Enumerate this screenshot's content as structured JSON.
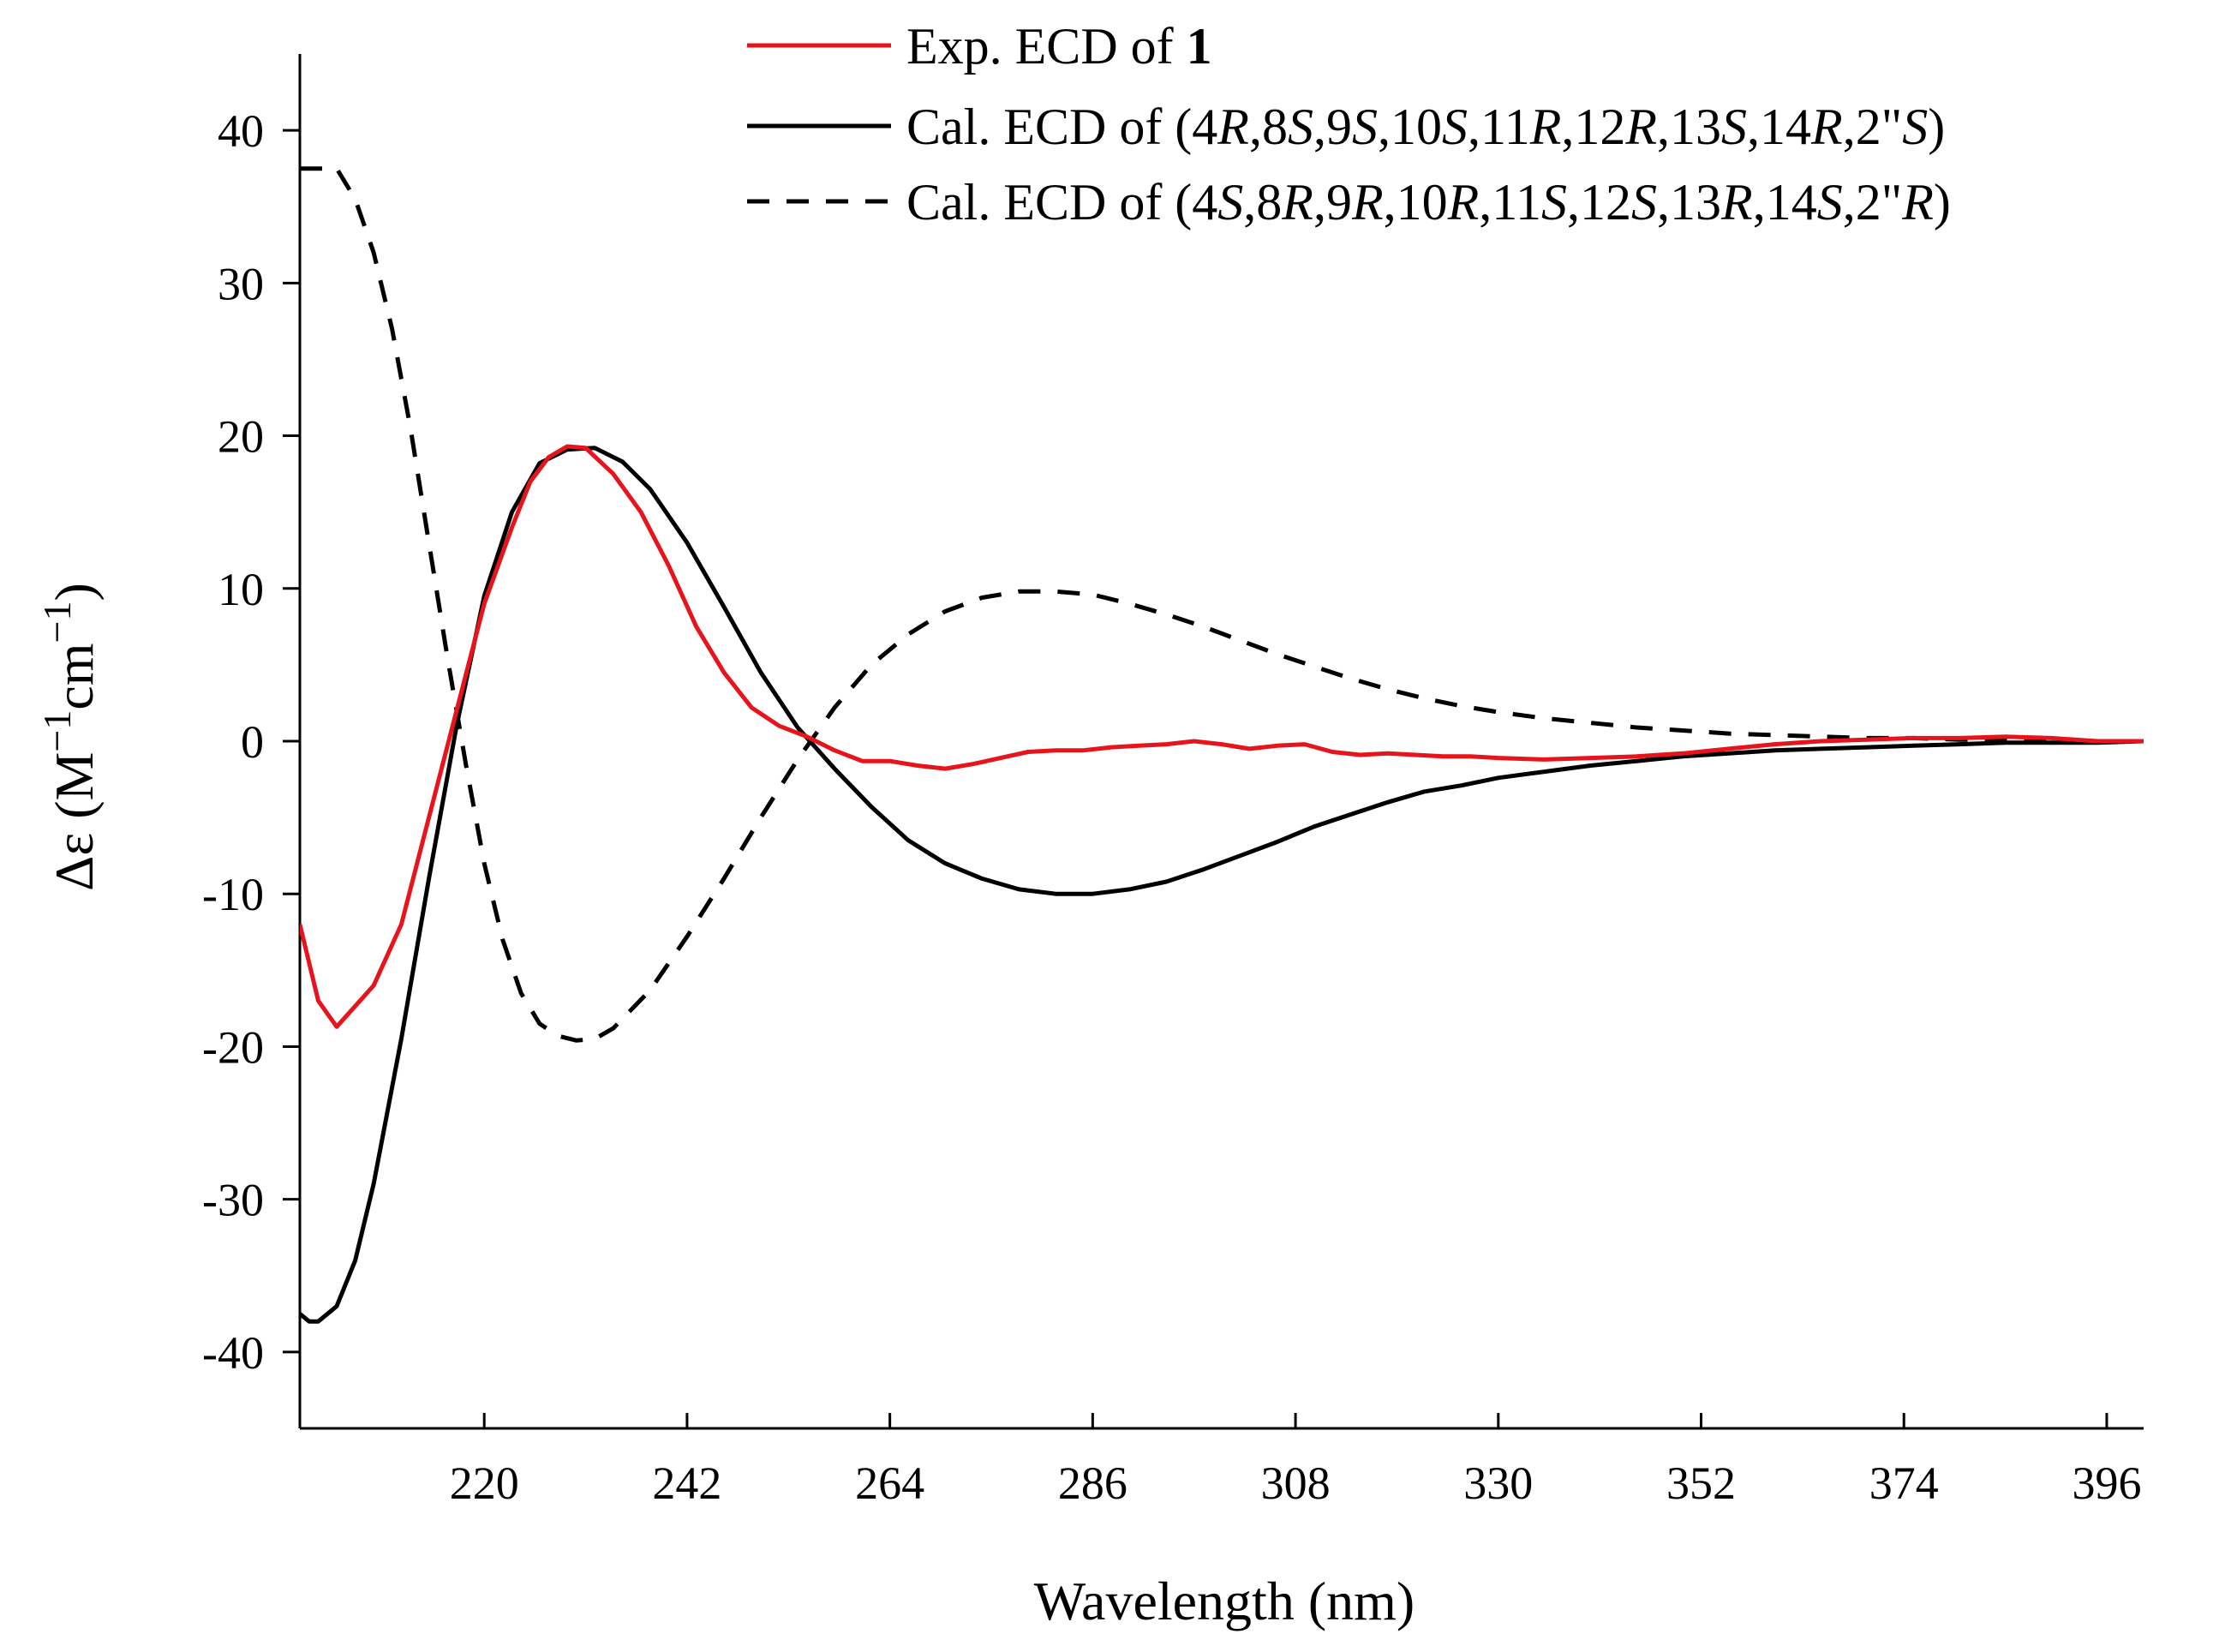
{
  "chart_data": {
    "type": "line",
    "title": "",
    "xlabel": "Wavelength (nm)",
    "ylabel": {
      "prefix": "Δε (M",
      "sup1": "−1",
      "mid": "cm",
      "sup2": "−1",
      "suffix": ")"
    },
    "xlim": [
      200,
      400
    ],
    "ylim": [
      -45,
      45
    ],
    "xticks": [
      220,
      242,
      264,
      286,
      308,
      330,
      352,
      374,
      396
    ],
    "yticks": [
      40,
      30,
      20,
      10,
      0,
      -10,
      -20,
      -30,
      -40
    ],
    "grid": false,
    "legend": {
      "position": "top-right"
    },
    "series": [
      {
        "name": "Exp. ECD of 1",
        "legend": [
          {
            "text": "Exp. ECD of ",
            "style": "normal"
          },
          {
            "text": "1",
            "style": "bold"
          }
        ],
        "color": "#e8141c",
        "dash": "solid",
        "x": [
          200,
          202,
          204,
          208,
          211,
          214,
          217,
          220,
          223,
          225,
          227,
          229,
          231,
          234,
          237,
          240,
          243,
          246,
          249,
          252,
          255,
          258,
          261,
          264,
          267,
          270,
          273,
          276,
          279,
          282,
          285,
          288,
          291,
          294,
          297,
          300,
          303,
          306,
          309,
          312,
          315,
          318,
          321,
          324,
          327,
          330,
          335,
          340,
          345,
          350,
          355,
          360,
          365,
          370,
          375,
          380,
          385,
          390,
          395,
          400
        ],
        "y": [
          -12,
          -17,
          -18.7,
          -16,
          -12,
          -5,
          2,
          9,
          14,
          17,
          18.6,
          19.3,
          19.2,
          17.5,
          15,
          11.5,
          7.5,
          4.5,
          2.2,
          1.0,
          0.3,
          -0.6,
          -1.3,
          -1.3,
          -1.6,
          -1.8,
          -1.5,
          -1.1,
          -0.7,
          -0.6,
          -0.6,
          -0.4,
          -0.3,
          -0.2,
          0.0,
          -0.2,
          -0.5,
          -0.3,
          -0.2,
          -0.7,
          -0.9,
          -0.8,
          -0.9,
          -1.0,
          -1.0,
          -1.1,
          -1.2,
          -1.1,
          -1.0,
          -0.8,
          -0.5,
          -0.2,
          0.0,
          0.1,
          0.2,
          0.2,
          0.3,
          0.2,
          0.0,
          0.0
        ]
      },
      {
        "name": "Cal. ECD of (4R,8S,9S,10S,11R,12R,13S,14R,2\"S)",
        "legend": [
          {
            "text": "Cal. ECD of (4",
            "style": "normal"
          },
          {
            "text": "R",
            "style": "italic"
          },
          {
            "text": ",8",
            "style": "normal"
          },
          {
            "text": "S",
            "style": "italic"
          },
          {
            "text": ",9",
            "style": "normal"
          },
          {
            "text": "S",
            "style": "italic"
          },
          {
            "text": ",10",
            "style": "normal"
          },
          {
            "text": "S",
            "style": "italic"
          },
          {
            "text": ",11",
            "style": "normal"
          },
          {
            "text": "R",
            "style": "italic"
          },
          {
            "text": ",12",
            "style": "normal"
          },
          {
            "text": "R",
            "style": "italic"
          },
          {
            "text": ",13",
            "style": "normal"
          },
          {
            "text": "S",
            "style": "italic"
          },
          {
            "text": ",14",
            "style": "normal"
          },
          {
            "text": "R",
            "style": "italic"
          },
          {
            "text": ",2\"",
            "style": "normal"
          },
          {
            "text": "S",
            "style": "italic"
          },
          {
            "text": ")",
            "style": "normal"
          }
        ],
        "color": "#000000",
        "dash": "solid",
        "x": [
          200,
          201,
          202,
          204,
          206,
          208,
          211,
          214,
          217,
          220,
          223,
          226,
          229,
          232,
          235,
          238,
          242,
          246,
          250,
          254,
          258,
          262,
          266,
          270,
          274,
          278,
          282,
          286,
          290,
          294,
          298,
          302,
          306,
          310,
          314,
          318,
          322,
          326,
          330,
          335,
          340,
          345,
          350,
          355,
          360,
          365,
          370,
          375,
          380,
          385,
          390,
          395,
          400
        ],
        "y": [
          -37.5,
          -38,
          -38,
          -37,
          -34,
          -29,
          -19.5,
          -9,
          1,
          9.5,
          15,
          18.2,
          19.1,
          19.2,
          18.3,
          16.5,
          13,
          8.8,
          4.5,
          0.9,
          -1.8,
          -4.3,
          -6.5,
          -8.0,
          -9.0,
          -9.7,
          -10.0,
          -10.0,
          -9.7,
          -9.2,
          -8.4,
          -7.5,
          -6.6,
          -5.6,
          -4.8,
          -4.0,
          -3.3,
          -2.9,
          -2.4,
          -2.0,
          -1.6,
          -1.3,
          -1.0,
          -0.8,
          -0.6,
          -0.5,
          -0.4,
          -0.3,
          -0.2,
          -0.1,
          -0.1,
          -0.1,
          0.0
        ]
      },
      {
        "name": "Cal. ECD of (4S,8R,9R,10R,11S,12S,13R,14S,2\"R)",
        "legend": [
          {
            "text": "Cal. ECD of (4",
            "style": "normal"
          },
          {
            "text": "S",
            "style": "italic"
          },
          {
            "text": ",8",
            "style": "normal"
          },
          {
            "text": "R",
            "style": "italic"
          },
          {
            "text": ",9",
            "style": "normal"
          },
          {
            "text": "R",
            "style": "italic"
          },
          {
            "text": ",10",
            "style": "normal"
          },
          {
            "text": "R",
            "style": "italic"
          },
          {
            "text": ",11",
            "style": "normal"
          },
          {
            "text": "S",
            "style": "italic"
          },
          {
            "text": ",12",
            "style": "normal"
          },
          {
            "text": "S",
            "style": "italic"
          },
          {
            "text": ",13",
            "style": "normal"
          },
          {
            "text": "R",
            "style": "italic"
          },
          {
            "text": ",14",
            "style": "normal"
          },
          {
            "text": "S",
            "style": "italic"
          },
          {
            "text": ",2\"",
            "style": "normal"
          },
          {
            "text": "R",
            "style": "italic"
          },
          {
            "text": ")",
            "style": "normal"
          }
        ],
        "color": "#000000",
        "dash": "dashed",
        "x": [
          200,
          202,
          204,
          206,
          208,
          210,
          212,
          214,
          216,
          218,
          220,
          222,
          224,
          226,
          228,
          230,
          232,
          234,
          238,
          242,
          246,
          250,
          254,
          258,
          262,
          266,
          270,
          274,
          278,
          282,
          286,
          290,
          294,
          298,
          302,
          306,
          310,
          314,
          318,
          322,
          326,
          330,
          335,
          340,
          345,
          350,
          355,
          360,
          365,
          370,
          375,
          380,
          385,
          390,
          395,
          400
        ],
        "y": [
          37.5,
          37.5,
          37.5,
          35.5,
          32,
          27,
          20.5,
          13,
          5.5,
          -1.5,
          -8.0,
          -13,
          -16.5,
          -18.5,
          -19.3,
          -19.6,
          -19.5,
          -18.8,
          -16.3,
          -12.8,
          -9.0,
          -5.0,
          -1.2,
          2.2,
          5.0,
          7.0,
          8.5,
          9.4,
          9.8,
          9.8,
          9.6,
          9.0,
          8.3,
          7.5,
          6.6,
          5.7,
          4.9,
          4.1,
          3.4,
          2.8,
          2.3,
          1.9,
          1.5,
          1.2,
          0.9,
          0.7,
          0.5,
          0.4,
          0.3,
          0.2,
          0.2,
          0.1,
          0.1,
          0.1,
          0.0,
          0.0
        ]
      }
    ]
  }
}
